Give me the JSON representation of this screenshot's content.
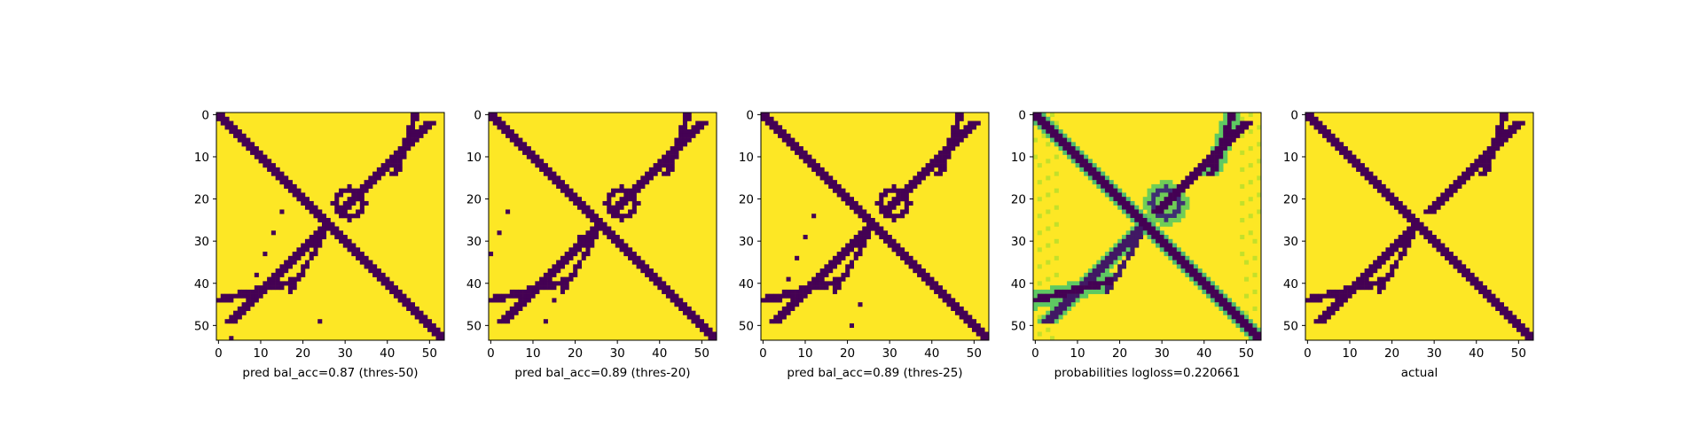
{
  "chart_data": [
    {
      "type": "heatmap",
      "title": "",
      "xlabel": "pred bal_acc=0.87 (thres-50)",
      "ylabel": "",
      "size": 54,
      "xlim": [
        0,
        53
      ],
      "ylim": [
        53,
        0
      ],
      "xticks": [
        "0",
        "10",
        "20",
        "30",
        "40",
        "50"
      ],
      "yticks": [
        "0",
        "10",
        "20",
        "30",
        "40",
        "50"
      ],
      "colormap": "viridis",
      "values_description": "binary contact map: main diagonal band, anti-diagonal streaks and scattered islands",
      "thresholded": true
    },
    {
      "type": "heatmap",
      "title": "",
      "xlabel": "pred bal_acc=0.89 (thres-20)",
      "ylabel": "",
      "size": 54,
      "xlim": [
        0,
        53
      ],
      "ylim": [
        53,
        0
      ],
      "xticks": [
        "0",
        "10",
        "20",
        "30",
        "40",
        "50"
      ],
      "yticks": [
        "0",
        "10",
        "20",
        "30",
        "40",
        "50"
      ],
      "colormap": "viridis",
      "thresholded": true
    },
    {
      "type": "heatmap",
      "title": "",
      "xlabel": "pred bal_acc=0.89 (thres-25)",
      "ylabel": "",
      "size": 54,
      "xlim": [
        0,
        53
      ],
      "ylim": [
        53,
        0
      ],
      "xticks": [
        "0",
        "10",
        "20",
        "30",
        "40",
        "50"
      ],
      "yticks": [
        "0",
        "10",
        "20",
        "30",
        "40",
        "50"
      ],
      "colormap": "viridis",
      "thresholded": true
    },
    {
      "type": "heatmap",
      "title": "",
      "xlabel": "probabilities logloss=0.220661",
      "ylabel": "",
      "size": 54,
      "xlim": [
        0,
        53
      ],
      "ylim": [
        53,
        0
      ],
      "xticks": [
        "0",
        "10",
        "20",
        "30",
        "40",
        "50"
      ],
      "yticks": [
        "0",
        "10",
        "20",
        "30",
        "40",
        "50"
      ],
      "colormap": "viridis",
      "thresholded": false
    },
    {
      "type": "heatmap",
      "title": "",
      "xlabel": "actual",
      "ylabel": "",
      "size": 54,
      "xlim": [
        0,
        53
      ],
      "ylim": [
        53,
        0
      ],
      "xticks": [
        "0",
        "10",
        "20",
        "30",
        "40",
        "50"
      ],
      "yticks": [
        "0",
        "10",
        "20",
        "30",
        "40",
        "50"
      ],
      "colormap": "viridis",
      "thresholded": true
    }
  ],
  "colors": {
    "background": "#fde725",
    "foreground": "#440154",
    "mid_teal": "#21918c",
    "mid_green": "#5ec962",
    "light_green": "#b5de2b",
    "axis": "#000000"
  }
}
